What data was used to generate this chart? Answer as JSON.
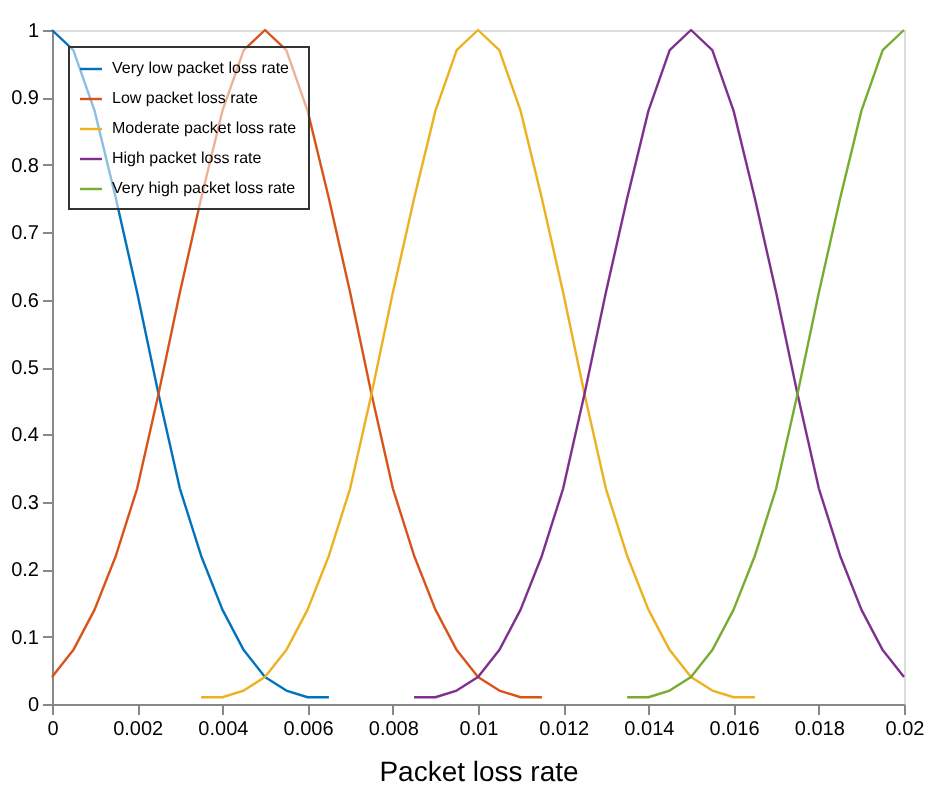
{
  "chart_data": {
    "type": "line",
    "xlabel": "Packet loss rate",
    "series": [
      {
        "name": "Very low packet loss rate",
        "color": "#0072bd",
        "x": [
          0,
          0.0005,
          0.001,
          0.0015,
          0.002,
          0.0025,
          0.003,
          0.0035,
          0.004,
          0.0045,
          0.005,
          0.0055,
          0.006,
          0.0065
        ],
        "values": [
          1,
          0.97,
          0.88,
          0.75,
          0.61,
          0.46,
          0.32,
          0.22,
          0.14,
          0.08,
          0.04,
          0.02,
          0.01,
          0.01
        ]
      },
      {
        "name": "Low packet loss rate",
        "color": "#d95319",
        "x": [
          0,
          0.0005,
          0.001,
          0.0015,
          0.002,
          0.0025,
          0.003,
          0.0035,
          0.004,
          0.0045,
          0.005,
          0.0055,
          0.006,
          0.0065,
          0.007,
          0.0075,
          0.008,
          0.0085,
          0.009,
          0.0095,
          0.01,
          0.0105,
          0.011,
          0.0115
        ],
        "values": [
          0.04,
          0.08,
          0.14,
          0.22,
          0.32,
          0.46,
          0.61,
          0.75,
          0.88,
          0.97,
          1,
          0.97,
          0.88,
          0.75,
          0.61,
          0.46,
          0.32,
          0.22,
          0.14,
          0.08,
          0.04,
          0.02,
          0.01,
          0.01
        ]
      },
      {
        "name": "Moderate packet loss rate",
        "color": "#edb120",
        "x": [
          0.0035,
          0.004,
          0.0045,
          0.005,
          0.0055,
          0.006,
          0.0065,
          0.007,
          0.0075,
          0.008,
          0.0085,
          0.009,
          0.0095,
          0.01,
          0.0105,
          0.011,
          0.0115,
          0.012,
          0.0125,
          0.013,
          0.0135,
          0.014,
          0.0145,
          0.015,
          0.0155,
          0.016,
          0.0165
        ],
        "values": [
          0.01,
          0.01,
          0.02,
          0.04,
          0.08,
          0.14,
          0.22,
          0.32,
          0.46,
          0.61,
          0.75,
          0.88,
          0.97,
          1,
          0.97,
          0.88,
          0.75,
          0.61,
          0.46,
          0.32,
          0.22,
          0.14,
          0.08,
          0.04,
          0.02,
          0.01,
          0.01
        ]
      },
      {
        "name": "High packet loss rate",
        "color": "#7e2f8e",
        "x": [
          0.0085,
          0.009,
          0.0095,
          0.01,
          0.0105,
          0.011,
          0.0115,
          0.012,
          0.0125,
          0.013,
          0.0135,
          0.014,
          0.0145,
          0.015,
          0.0155,
          0.016,
          0.0165,
          0.017,
          0.0175,
          0.018,
          0.0185,
          0.019,
          0.0195,
          0.02
        ],
        "values": [
          0.01,
          0.01,
          0.02,
          0.04,
          0.08,
          0.14,
          0.22,
          0.32,
          0.46,
          0.61,
          0.75,
          0.88,
          0.97,
          1,
          0.97,
          0.88,
          0.75,
          0.61,
          0.46,
          0.32,
          0.22,
          0.14,
          0.08,
          0.04
        ]
      },
      {
        "name": "Very high packet loss rate",
        "color": "#77ac30",
        "x": [
          0.0135,
          0.014,
          0.0145,
          0.015,
          0.0155,
          0.016,
          0.0165,
          0.017,
          0.0175,
          0.018,
          0.0185,
          0.019,
          0.0195,
          0.02
        ],
        "values": [
          0.01,
          0.01,
          0.02,
          0.04,
          0.08,
          0.14,
          0.22,
          0.32,
          0.46,
          0.61,
          0.75,
          0.88,
          0.97,
          1
        ]
      }
    ],
    "xlim": [
      0,
      0.02
    ],
    "xticks": [
      0,
      0.002,
      0.004,
      0.006,
      0.008,
      0.01,
      0.012,
      0.014,
      0.016,
      0.018,
      0.02
    ],
    "ylim": [
      0,
      1
    ],
    "yticks": [
      0,
      0.1,
      0.2,
      0.3,
      0.4,
      0.5,
      0.6,
      0.7,
      0.8,
      0.9,
      1
    ],
    "legend": "top left",
    "grid": false,
    "marker": "none",
    "line_style": "solid"
  }
}
